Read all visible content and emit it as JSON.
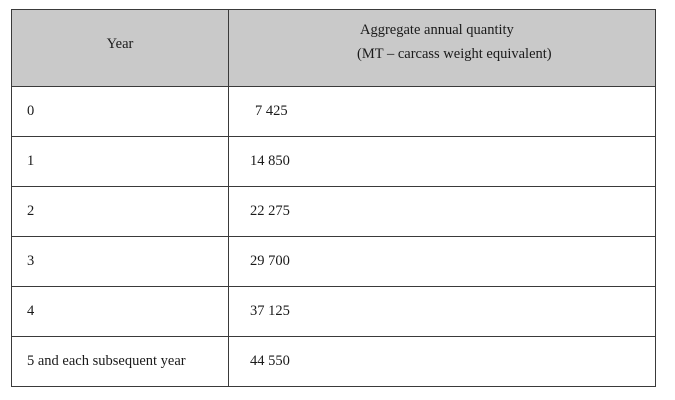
{
  "table": {
    "headers": {
      "year": "Year",
      "quantity_line1": "Aggregate annual quantity",
      "quantity_line2": "(MT – carcass weight equivalent)"
    },
    "rows": [
      {
        "year": "0",
        "quantity": "7 425"
      },
      {
        "year": "1",
        "quantity": "14 850"
      },
      {
        "year": "2",
        "quantity": "22 275"
      },
      {
        "year": "3",
        "quantity": "29 700"
      },
      {
        "year": "4",
        "quantity": "37 125"
      },
      {
        "year": "5 and each subsequent year",
        "quantity": "44 550"
      }
    ]
  },
  "colors": {
    "header_background": "#c9c9c9",
    "border": "#3a3a3a"
  }
}
